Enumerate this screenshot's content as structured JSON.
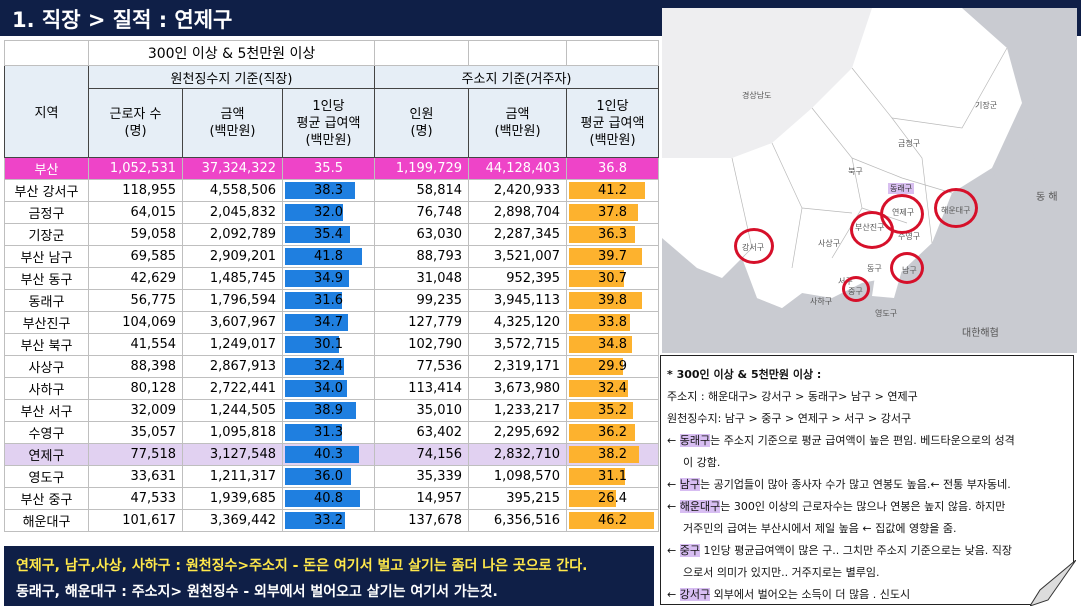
{
  "title": "1. 직장 > 질적 : 연제구",
  "table": {
    "subtitle": "300인 이상 &  5천만원 이상",
    "group_workplace": "원천징수지 기준(직장)",
    "group_residence": "주소지 기준(거주자)",
    "col_region": "지역",
    "col_workers": "근로자 수\n(명)",
    "col_amount": "금액\n(백만원)",
    "col_avg": "1인당\n평균 급여액\n(백만원)",
    "col_residents": "인원\n(명)",
    "col_amount2": "금액\n(백만원)",
    "col_avg2": "1인당\n평균 급여액\n(백만원)",
    "avg_scale_max": 47,
    "rows": [
      {
        "region": "부산",
        "workers": "1,052,531",
        "amount": "37,324,322",
        "avg": "35.5",
        "residents": "1,199,729",
        "amount2": "44,128,403",
        "avg2": "36.8",
        "type": "busan"
      },
      {
        "region": "부산 강서구",
        "workers": "118,955",
        "amount": "4,558,506",
        "avg": "38.3",
        "residents": "58,814",
        "amount2": "2,420,933",
        "avg2": "41.2",
        "type": ""
      },
      {
        "region": "금정구",
        "workers": "64,015",
        "amount": "2,045,832",
        "avg": "32.0",
        "residents": "76,748",
        "amount2": "2,898,704",
        "avg2": "37.8",
        "type": ""
      },
      {
        "region": "기장군",
        "workers": "59,058",
        "amount": "2,092,789",
        "avg": "35.4",
        "residents": "63,030",
        "amount2": "2,287,345",
        "avg2": "36.3",
        "type": ""
      },
      {
        "region": "부산 남구",
        "workers": "69,585",
        "amount": "2,909,201",
        "avg": "41.8",
        "residents": "88,793",
        "amount2": "3,521,007",
        "avg2": "39.7",
        "type": ""
      },
      {
        "region": "부산 동구",
        "workers": "42,629",
        "amount": "1,485,745",
        "avg": "34.9",
        "residents": "31,048",
        "amount2": "952,395",
        "avg2": "30.7",
        "type": ""
      },
      {
        "region": "동래구",
        "workers": "56,775",
        "amount": "1,796,594",
        "avg": "31.6",
        "residents": "99,235",
        "amount2": "3,945,113",
        "avg2": "39.8",
        "type": ""
      },
      {
        "region": "부산진구",
        "workers": "104,069",
        "amount": "3,607,967",
        "avg": "34.7",
        "residents": "127,779",
        "amount2": "4,325,120",
        "avg2": "33.8",
        "type": ""
      },
      {
        "region": "부산 북구",
        "workers": "41,554",
        "amount": "1,249,017",
        "avg": "30.1",
        "residents": "102,790",
        "amount2": "3,572,715",
        "avg2": "34.8",
        "type": ""
      },
      {
        "region": "사상구",
        "workers": "88,398",
        "amount": "2,867,913",
        "avg": "32.4",
        "residents": "77,536",
        "amount2": "2,319,171",
        "avg2": "29.9",
        "type": ""
      },
      {
        "region": "사하구",
        "workers": "80,128",
        "amount": "2,722,441",
        "avg": "34.0",
        "residents": "113,414",
        "amount2": "3,673,980",
        "avg2": "32.4",
        "type": ""
      },
      {
        "region": "부산 서구",
        "workers": "32,009",
        "amount": "1,244,505",
        "avg": "38.9",
        "residents": "35,010",
        "amount2": "1,233,217",
        "avg2": "35.2",
        "type": ""
      },
      {
        "region": "수영구",
        "workers": "35,057",
        "amount": "1,095,818",
        "avg": "31.3",
        "residents": "63,402",
        "amount2": "2,295,692",
        "avg2": "36.2",
        "type": ""
      },
      {
        "region": "연제구",
        "workers": "77,518",
        "amount": "3,127,548",
        "avg": "40.3",
        "residents": "74,156",
        "amount2": "2,832,710",
        "avg2": "38.2",
        "type": "highlight"
      },
      {
        "region": "영도구",
        "workers": "33,631",
        "amount": "1,211,317",
        "avg": "36.0",
        "residents": "35,339",
        "amount2": "1,098,570",
        "avg2": "31.1",
        "type": ""
      },
      {
        "region": "부산 중구",
        "workers": "47,533",
        "amount": "1,939,685",
        "avg": "40.8",
        "residents": "14,957",
        "amount2": "395,215",
        "avg2": "26.4",
        "type": ""
      },
      {
        "region": "해운대구",
        "workers": "101,617",
        "amount": "3,369,442",
        "avg": "33.2",
        "residents": "137,678",
        "amount2": "6,356,516",
        "avg2": "46.2",
        "type": ""
      }
    ]
  },
  "bottom_note": {
    "line1": "연제구, 남구,사상, 사하구 : 원천징수>주소지 - 돈은 여기서 벌고 살기는 좀더 나은 곳으로 간다.",
    "line2": "동래구, 해운대구 : 주소지> 원천징수 -  외부에서 벌어오고 살기는 여기서 가는것."
  },
  "map": {
    "labels": {
      "gyeongsang": "경상남도",
      "gijang": "기장군",
      "geumjeong": "금정구",
      "buk": "북구",
      "dongnae": "동래구",
      "yeonje": "연제구",
      "haeundae": "해운대구",
      "busanjin": "부산진구",
      "suyeong": "수영구",
      "sasang": "사상구",
      "gangseo": "강서구",
      "dong": "동구",
      "nam": "남구",
      "seo": "서구",
      "jung": "중구",
      "saha": "사하구",
      "yeongdo": "영도구",
      "east": "동 해",
      "strait": "대한해협"
    }
  },
  "side_note": {
    "heading": "* 300인 이상 & 5천만원 이상 :",
    "line_address": "주소지 : 해운대구> 강서구 > 동래구> 남구 > 연제구",
    "line_withholding": "원천징수지: 남구 > 중구 > 연제구 > 서구 > 강서구",
    "dongnae_hl": "동래구",
    "dongnae_rest": "는 주소지 기준으로 평균 급여액이 높은 편임. 베드타운으로의 성격",
    "dongnae_cont": "이 강함.",
    "nam_hl": "남구",
    "nam_rest": "는 공기업들이 많아 종사자 수가 많고 연봉도 높음.← 전통 부자동네.",
    "haeundae_hl": "해운대구",
    "haeundae_rest": "는 300인 이상의 근로자수는 많으나 연봉은 높지 않음. 하지만",
    "haeundae_cont": "거주민의 급여는 부산시에서 제일 높음 ← 집값에 영향을 줌.",
    "jung_hl": "중구",
    "jung_rest": " 1인당 평균급여액이 많은 구.. 그치만 주소지 기준으로는 낮음. 직장",
    "jung_cont": "으로서 의미가 있지만.. 거주지로는 별루임.",
    "gangseo_hl": "강서구",
    "gangseo_rest": " 외부에서 벌어오는 소득이 더 많음 . 신도시",
    "arrow": "←"
  },
  "colors": {
    "title_bg": "#0f1f47",
    "busan_row": "#ee44c8",
    "highlight_row": "#e1d1f1",
    "bar_blue": "#1f7fe0",
    "bar_orange": "#fdb22e",
    "note_yellow": "#ffe84a",
    "map_circle": "#d6102a"
  }
}
